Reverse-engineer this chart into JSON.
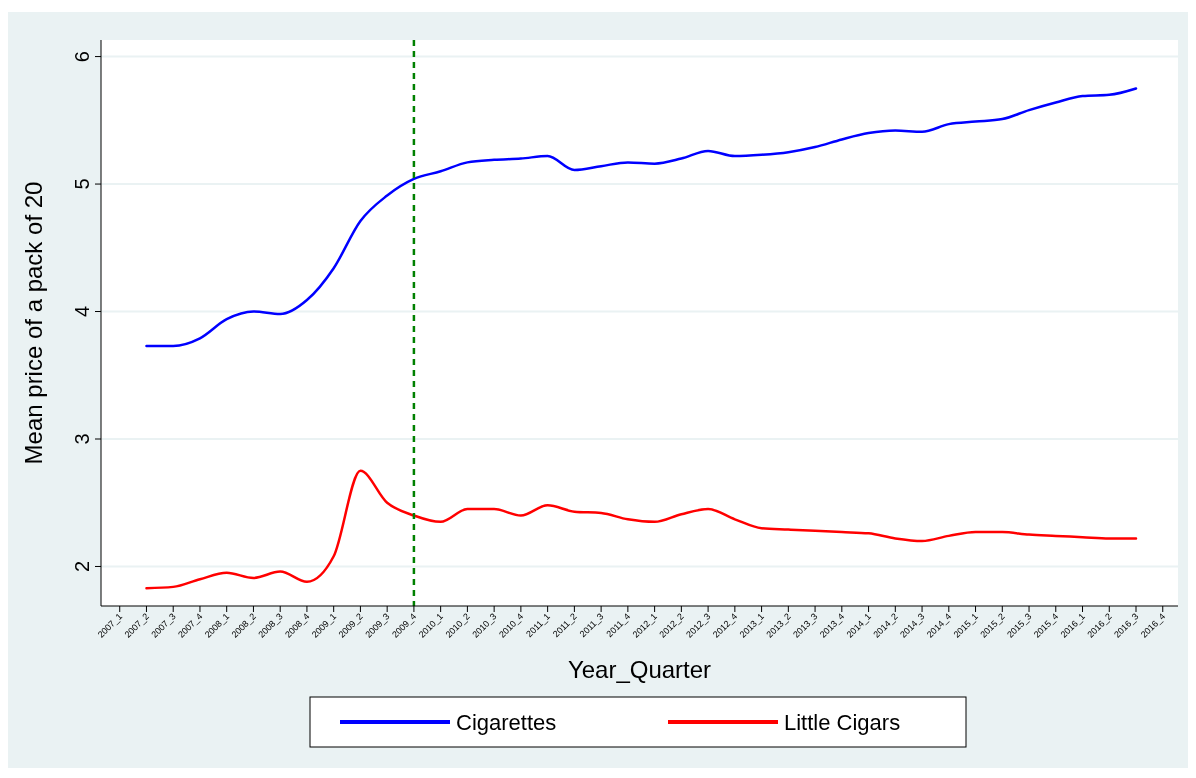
{
  "chart_data": {
    "type": "line",
    "xlabel": "Year_Quarter",
    "ylabel": "Mean price of a pack of 20",
    "categories": [
      "2007_1",
      "2007_2",
      "2007_3",
      "2007_4",
      "2008_1",
      "2008_2",
      "2008_3",
      "2008_4",
      "2009_1",
      "2009_2",
      "2009_3",
      "2009_4",
      "2010_1",
      "2010_2",
      "2010_3",
      "2010_4",
      "2011_1",
      "2011_2",
      "2011_3",
      "2011_4",
      "2012_1",
      "2012_2",
      "2012_3",
      "2012_4",
      "2013_1",
      "2013_2",
      "2013_3",
      "2013_4",
      "2014_1",
      "2014_2",
      "2014_3",
      "2014_4",
      "2015_1",
      "2015_2",
      "2015_3",
      "2015_4",
      "2016_1",
      "2016_2",
      "2016_3",
      "2016_4"
    ],
    "ylim": [
      1.69,
      6.13
    ],
    "yticks": [
      2,
      3,
      4,
      5,
      6
    ],
    "grid": "y",
    "legend": "bottom",
    "marker": "none",
    "line_style": "solid",
    "ref_lines": [
      {
        "axis": "x",
        "value": "2009_4",
        "color": "#008000",
        "line_style": "dashed"
      }
    ],
    "series": [
      {
        "name": "Cigarettes",
        "color": "#0000ff",
        "values": [
          null,
          3.73,
          3.73,
          3.79,
          3.94,
          4.0,
          3.98,
          4.09,
          4.34,
          4.71,
          4.91,
          5.04,
          5.1,
          5.17,
          5.19,
          5.2,
          5.22,
          5.11,
          5.14,
          5.17,
          5.16,
          5.2,
          5.26,
          5.22,
          5.23,
          5.25,
          5.29,
          5.35,
          5.4,
          5.42,
          5.41,
          5.47,
          5.49,
          5.51,
          5.58,
          5.64,
          5.69,
          5.7,
          5.75,
          null
        ]
      },
      {
        "name": "Little Cigars",
        "color": "#ff0000",
        "values": [
          null,
          1.83,
          1.84,
          1.9,
          1.95,
          1.91,
          1.96,
          1.88,
          2.08,
          2.75,
          2.5,
          2.4,
          2.35,
          2.45,
          2.45,
          2.4,
          2.48,
          2.43,
          2.42,
          2.37,
          2.35,
          2.41,
          2.45,
          2.37,
          2.3,
          2.29,
          2.28,
          2.27,
          2.26,
          2.22,
          2.2,
          2.24,
          2.27,
          2.27,
          2.25,
          2.24,
          2.23,
          2.22,
          2.22,
          null
        ]
      }
    ]
  }
}
